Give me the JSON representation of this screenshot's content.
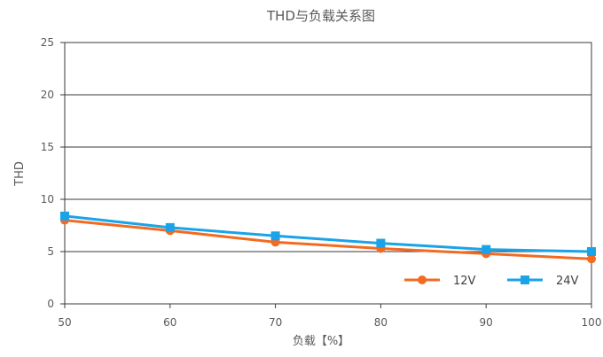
{
  "chart_data": {
    "type": "line",
    "title": "THD与负载关系图",
    "xlabel": "负载【%】",
    "ylabel": "THD",
    "x": [
      50,
      60,
      70,
      80,
      90,
      100
    ],
    "xlim": [
      50,
      100
    ],
    "ylim": [
      0,
      25
    ],
    "xticks": [
      50,
      60,
      70,
      80,
      90,
      100
    ],
    "yticks": [
      0,
      5,
      10,
      15,
      20,
      25
    ],
    "grid": "horizontal",
    "legend": "bottom-right inside plot",
    "series": [
      {
        "name": "12V",
        "color": "#f26b21",
        "marker": "circle",
        "values": [
          8.0,
          7.0,
          5.9,
          5.3,
          4.8,
          4.3
        ]
      },
      {
        "name": "24V",
        "color": "#1aa3e8",
        "marker": "square",
        "values": [
          8.4,
          7.3,
          6.5,
          5.8,
          5.2,
          5.0
        ]
      }
    ]
  }
}
